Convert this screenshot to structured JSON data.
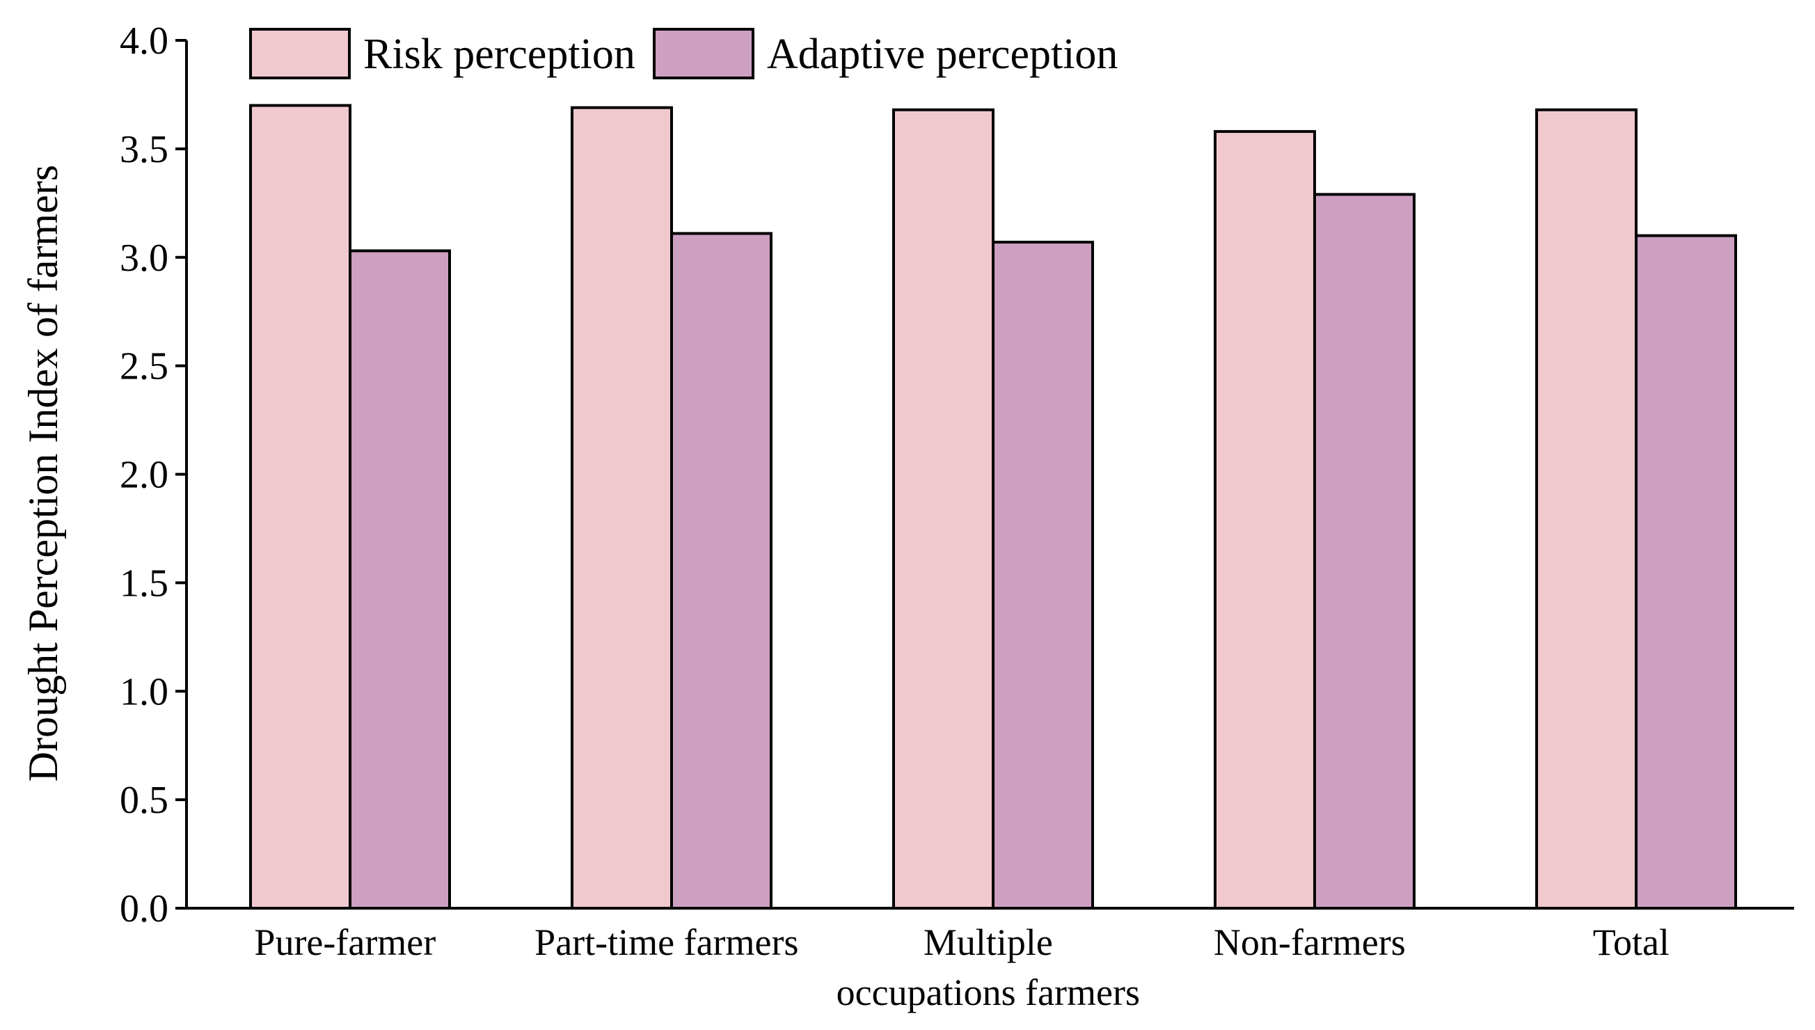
{
  "chart_data": {
    "type": "bar",
    "title": "",
    "xlabel": "",
    "ylabel": "Drought Perception Index of farmers",
    "ylim": [
      0,
      4.0
    ],
    "yticks": [
      "0.0",
      "0.5",
      "1.0",
      "1.5",
      "2.0",
      "2.5",
      "3.0",
      "3.5",
      "4.0"
    ],
    "categories": [
      [
        "Pure-farmer"
      ],
      [
        "Part-time farmers"
      ],
      [
        "Multiple",
        "occupations farmers"
      ],
      [
        "Non-farmers"
      ],
      [
        "Total"
      ]
    ],
    "series": [
      {
        "name": "Risk perception",
        "color": "#f0c9cf",
        "values": [
          3.7,
          3.69,
          3.68,
          3.58,
          3.68
        ]
      },
      {
        "name": "Adaptive perception",
        "color": "#cda0c2",
        "values": [
          3.03,
          3.11,
          3.07,
          3.29,
          3.1
        ]
      }
    ],
    "grid": false,
    "legend_position": "top-left"
  }
}
